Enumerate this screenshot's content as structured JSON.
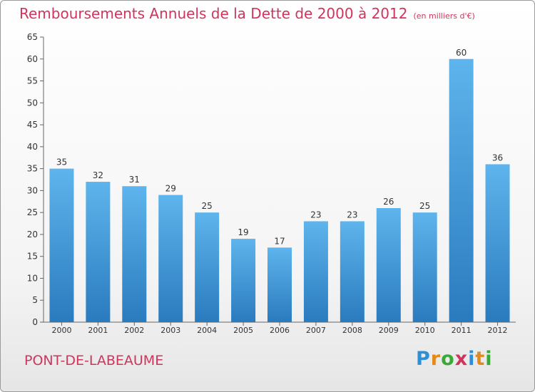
{
  "title": "Remboursements Annuels de la Dette de 2000 à 2012",
  "unit": "(en milliers d'€)",
  "commune": "PONT-DE-LABEAUME",
  "logo": {
    "letters": [
      "P",
      "r",
      "o",
      "x",
      "i",
      "t",
      "i"
    ],
    "colors": [
      "#2f8fd6",
      "#e38a1d",
      "#3aa93a",
      "#d1345b",
      "#2f8fd6",
      "#e38a1d",
      "#3aa93a"
    ]
  },
  "colors": {
    "bar_top": "#5eb4ec",
    "bar_bottom": "#2a7bbe",
    "accent": "#d1345b"
  },
  "chart_data": {
    "type": "bar",
    "categories": [
      "2000",
      "2001",
      "2002",
      "2003",
      "2004",
      "2005",
      "2006",
      "2007",
      "2008",
      "2009",
      "2010",
      "2011",
      "2012"
    ],
    "values": [
      35,
      32,
      31,
      29,
      25,
      19,
      17,
      23,
      23,
      26,
      25,
      60,
      36
    ],
    "ylim": [
      0,
      65
    ],
    "yticks": [
      0,
      5,
      10,
      15,
      20,
      25,
      30,
      35,
      40,
      45,
      50,
      55,
      60,
      65
    ],
    "grid": false,
    "legend": "none"
  }
}
